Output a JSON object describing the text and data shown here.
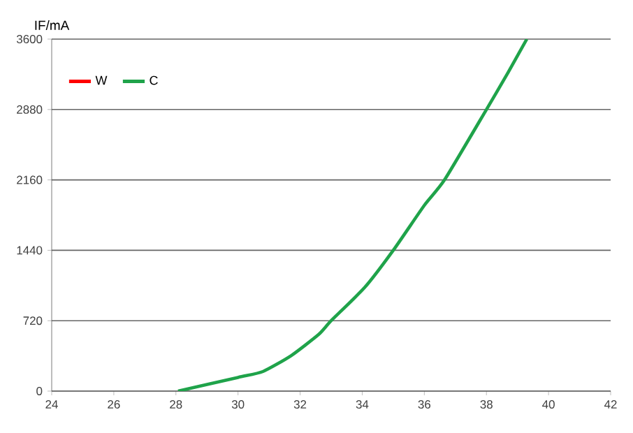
{
  "chart_data": {
    "type": "line",
    "ylabel": "IF/mA",
    "x": [
      28.07,
      30,
      30.8,
      31.7,
      32.6,
      33.0,
      34.08,
      35.0,
      36.0,
      36.65,
      38.0,
      38.7,
      39.3
    ],
    "series": [
      {
        "name": "W",
        "color": "#ff0000",
        "values": [
          null,
          null,
          null,
          null,
          null,
          null,
          null,
          null,
          null,
          null,
          null,
          null,
          null
        ]
      },
      {
        "name": "C",
        "color": "#1fa34a",
        "values": [
          0,
          140,
          200,
          360,
          580,
          720,
          1060,
          1440,
          1900,
          2160,
          2880,
          3260,
          3600
        ]
      }
    ],
    "xlim": [
      24,
      42
    ],
    "xticks": [
      24,
      26,
      28,
      30,
      32,
      34,
      36,
      38,
      40,
      42
    ],
    "ylim": [
      0,
      3600
    ],
    "yticks": [
      0,
      720,
      1440,
      2160,
      2880,
      3600
    ],
    "grid": "y",
    "legend": "top left",
    "marker": "none",
    "line_style": "solid"
  }
}
